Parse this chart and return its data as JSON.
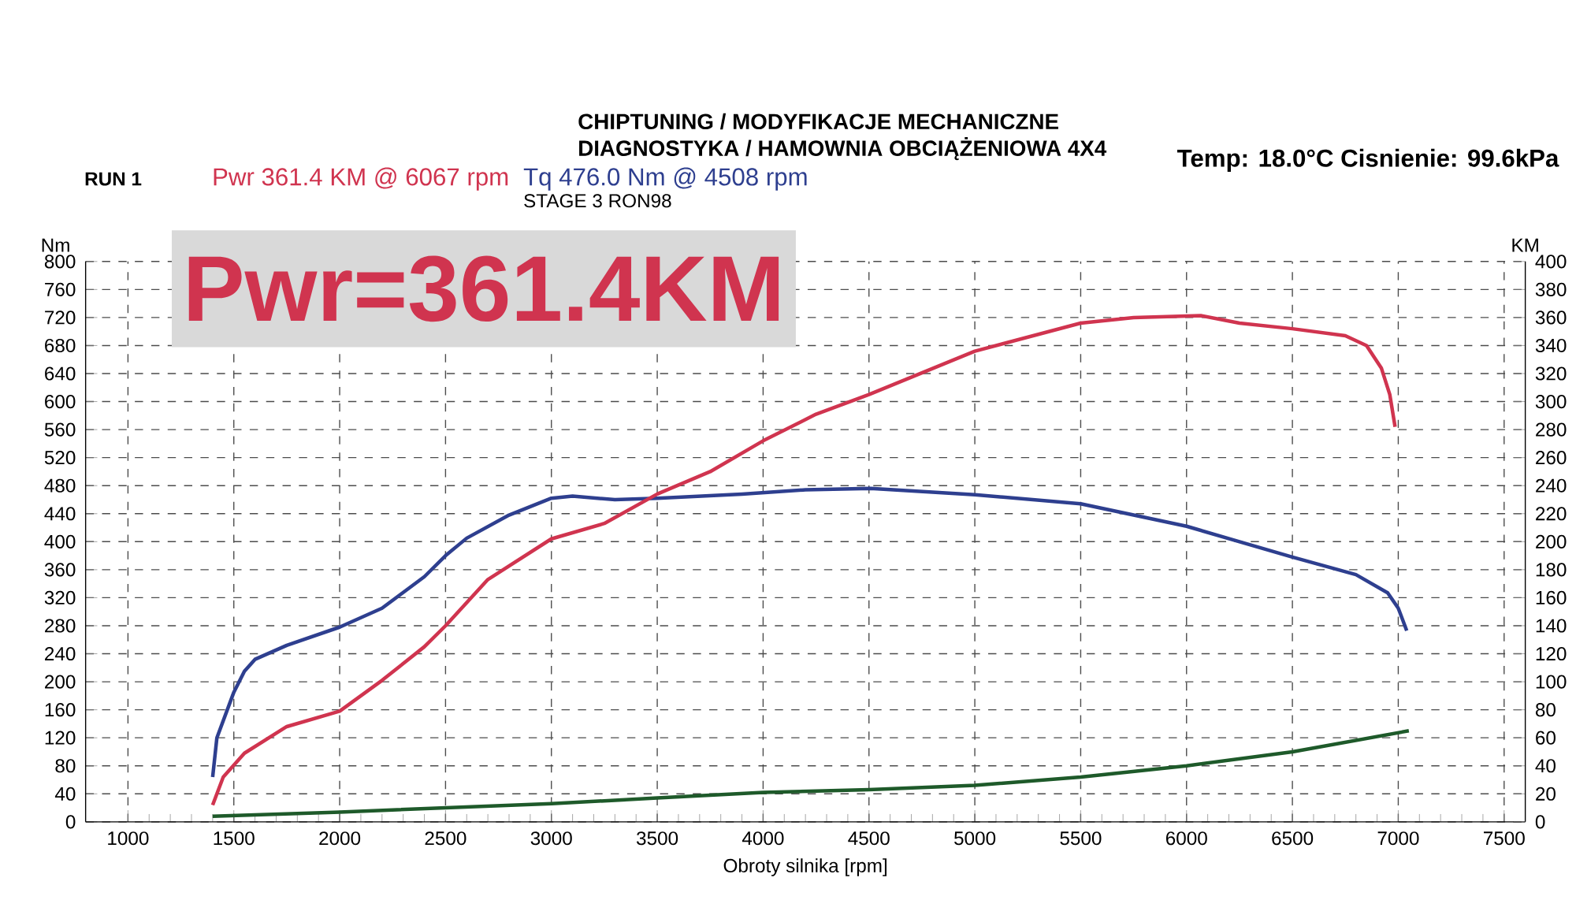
{
  "chart_data": {
    "type": "line",
    "xlabel": "Obroty silnika [rpm]",
    "ylabel": "Nm",
    "y2label": "KM",
    "xlim": [
      800,
      7600
    ],
    "xticks": [
      1000,
      1500,
      2000,
      2500,
      3000,
      3500,
      4000,
      4500,
      5000,
      5500,
      6000,
      6500,
      7000,
      7500
    ],
    "ylim": [
      0,
      800
    ],
    "yticks": [
      0,
      40,
      80,
      120,
      160,
      200,
      240,
      280,
      320,
      360,
      400,
      440,
      480,
      520,
      560,
      600,
      640,
      680,
      720,
      760,
      800
    ],
    "y2lim": [
      0,
      400
    ],
    "y2ticks": [
      0,
      20,
      40,
      60,
      80,
      100,
      120,
      140,
      160,
      180,
      200,
      220,
      240,
      260,
      280,
      300,
      320,
      340,
      360,
      380,
      400
    ],
    "grid": true,
    "series": [
      {
        "color": "#2e3f8f",
        "axis": "y",
        "x": [
          1400,
          1420,
          1500,
          1550,
          1600,
          1750,
          2000,
          2200,
          2400,
          2500,
          2600,
          2800,
          3000,
          3100,
          3300,
          3500,
          3900,
          4200,
          4508,
          5000,
          5500,
          6000,
          6250,
          6500,
          6800,
          6950,
          7000,
          7040
        ],
        "values": [
          64,
          120,
          185,
          215,
          232,
          252,
          278,
          305,
          350,
          380,
          405,
          438,
          462,
          465,
          460,
          462,
          468,
          474,
          476,
          467,
          454,
          422,
          400,
          378,
          353,
          327,
          305,
          273
        ]
      },
      {
        "color": "#d0344f",
        "axis": "y2",
        "x": [
          1400,
          1450,
          1550,
          1750,
          2000,
          2200,
          2400,
          2500,
          2700,
          3000,
          3250,
          3500,
          3750,
          4000,
          4250,
          4500,
          5000,
          5500,
          5750,
          6067,
          6250,
          6500,
          6750,
          6850,
          6920,
          6960,
          6985
        ],
        "values": [
          12,
          32,
          49,
          68,
          79,
          101,
          125,
          140,
          173,
          202,
          213,
          234,
          250,
          272,
          291,
          305,
          336,
          356,
          360,
          361.4,
          356,
          352,
          347,
          340,
          324,
          305,
          282
        ]
      },
      {
        "color": "#1e5a2a",
        "axis": "y2",
        "x": [
          1400,
          2000,
          2500,
          3000,
          3500,
          4000,
          4500,
          5000,
          5500,
          6000,
          6500,
          7050
        ],
        "values": [
          4,
          7,
          10,
          13,
          17,
          21,
          23,
          26,
          32,
          40,
          50,
          65
        ]
      }
    ],
    "annotations": [
      "RUN 1",
      "Pwr  361.4 KM @ 6067 rpm",
      "Tq 476.0 Nm @ 4508 rpm",
      "STAGE 3 RON98",
      "Temp: 18.0°C   Cisnienie: 99.6kPa",
      "Pwr=361.4KM",
      "CHIPTUNING / MODYFIKACJE MECHANICZNE",
      "DIAGNOSTYKA / HAMOWNIA OBCIĄŻENIOWA 4X4"
    ]
  }
}
